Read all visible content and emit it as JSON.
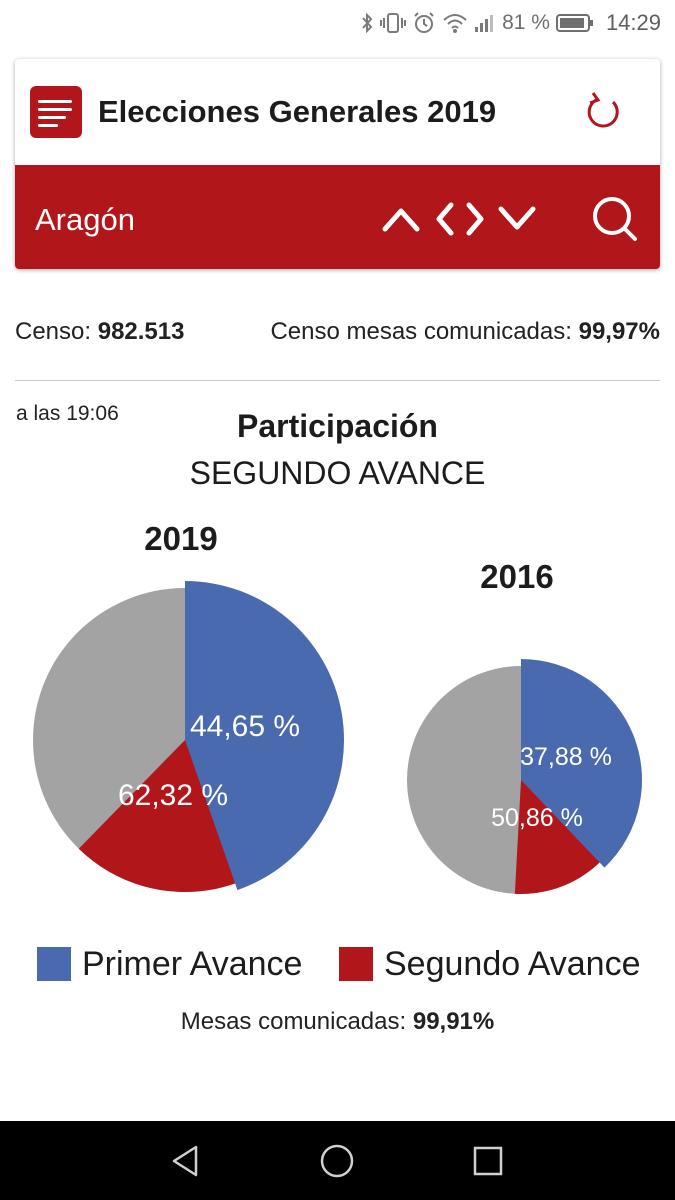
{
  "status_bar": {
    "battery": "81 %",
    "time": "14:29",
    "icons": [
      "bluetooth-icon",
      "vibrate-icon",
      "alarm-icon",
      "wifi-icon",
      "signal-icon",
      "battery-icon"
    ]
  },
  "header": {
    "title": "Elecciones Generales 2019",
    "region": "Aragón",
    "icons": [
      "menu-icon",
      "refresh-icon",
      "chevron-up-icon",
      "chevron-left-icon",
      "chevron-right-icon",
      "chevron-down-icon",
      "search-icon"
    ]
  },
  "stats": {
    "censo_label": "Censo:",
    "censo_value": "982.513",
    "censo_mesas_label": "Censo mesas comunicadas:",
    "censo_mesas_value": "99,97%"
  },
  "participation": {
    "time_label": "a las 19:06",
    "title": "Participación",
    "subtitle": "SEGUNDO AVANCE"
  },
  "chart_data": [
    {
      "type": "pie",
      "title": "2019",
      "series": [
        {
          "name": "Primer Avance",
          "value": 44.65,
          "label": "44,65 %"
        },
        {
          "name": "Segundo Avance",
          "value": 62.32,
          "label": "62,32 %"
        }
      ]
    },
    {
      "type": "pie",
      "title": "2016",
      "series": [
        {
          "name": "Primer Avance",
          "value": 37.88,
          "label": "37,88 %"
        },
        {
          "name": "Segundo Avance",
          "value": 50.86,
          "label": "50,86 %"
        }
      ]
    }
  ],
  "legend": {
    "primer": "Primer Avance",
    "segundo": "Segundo Avance"
  },
  "colors": {
    "primer": "#4a6aaf",
    "segundo": "#b1161b",
    "rest": "#a3a3a3",
    "brand": "#b1161b"
  },
  "footer": {
    "mesas_label": "Mesas comunicadas:",
    "mesas_value": "99,91%"
  },
  "nav": {
    "icons": [
      "back-icon",
      "home-icon",
      "recents-icon"
    ]
  }
}
